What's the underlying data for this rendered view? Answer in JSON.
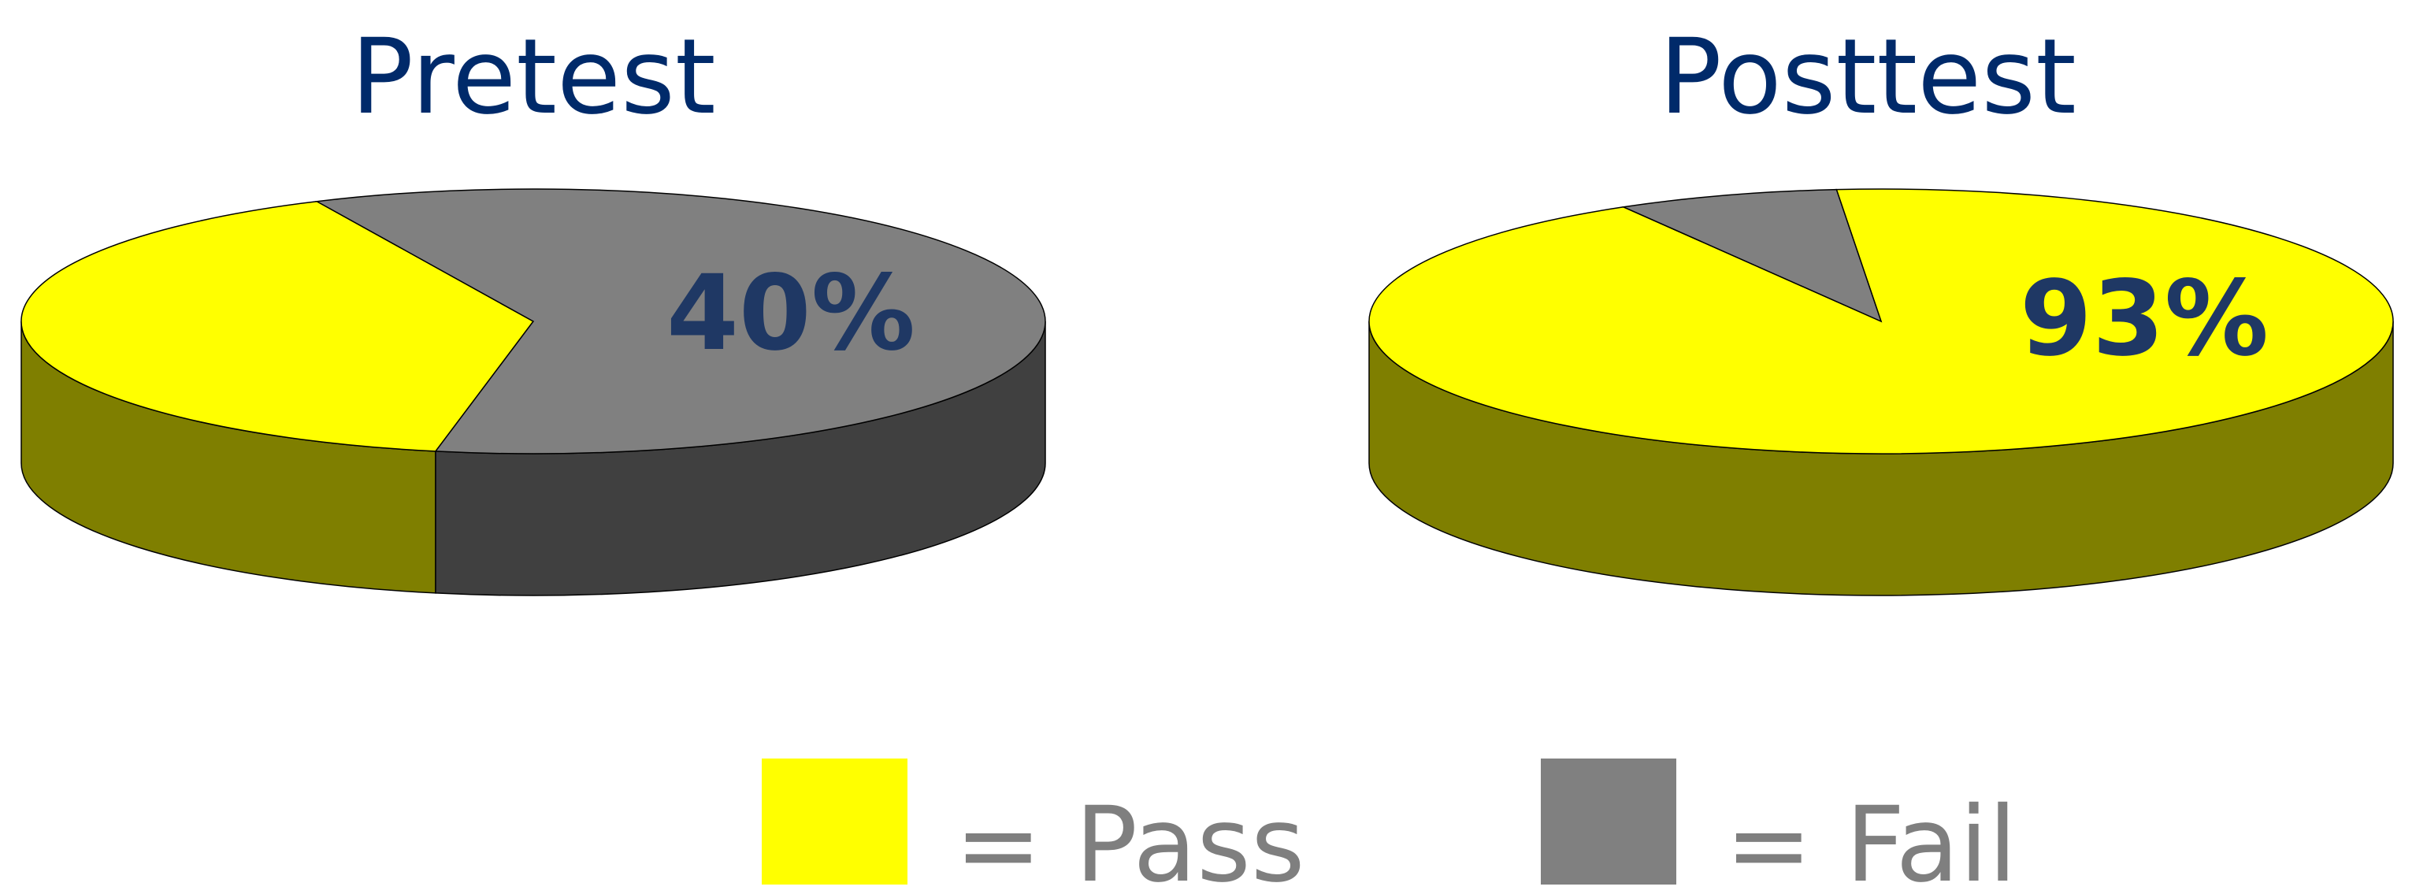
{
  "chart_data": [
    {
      "type": "pie",
      "title": "Pretest",
      "slices": [
        {
          "label": "Pass",
          "value": 40,
          "color": "#ffff00",
          "side_color": "#7f7f00"
        },
        {
          "label": "Fail",
          "value": 60,
          "color": "#808080",
          "side_color": "#404040"
        }
      ],
      "data_labels": [
        "40%"
      ],
      "style": "3d"
    },
    {
      "type": "pie",
      "title": "Posttest",
      "slices": [
        {
          "label": "Pass",
          "value": 93,
          "color": "#ffff00",
          "side_color": "#7f7f00"
        },
        {
          "label": "Fail",
          "value": 7,
          "color": "#808080",
          "side_color": "#404040"
        }
      ],
      "data_labels": [
        "93%"
      ],
      "style": "3d"
    }
  ],
  "legend": {
    "placement": "bottom",
    "items": [
      {
        "label": "= Pass",
        "color": "#ffff00"
      },
      {
        "label": "= Fail",
        "color": "#808080"
      }
    ]
  }
}
